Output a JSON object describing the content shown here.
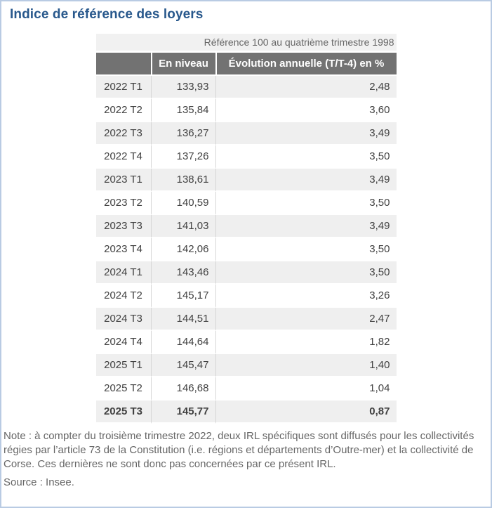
{
  "page": {
    "title": "Indice de référence des loyers",
    "note": "Note : à compter du troisième trimestre 2022, deux IRL spécifiques sont diffusés pour les collectivités régies par l’article 73 de la Constitution (i.e. régions et départements d’Outre-mer) et la collectivité de Corse. Ces dernières ne sont donc pas concernées par ce présent IRL.",
    "source": "Source : Insee."
  },
  "table": {
    "caption": "Référence 100 au quatrième trimestre 1998",
    "columns": [
      "",
      "En niveau",
      "Évolution annuelle (T/T-4) en %"
    ],
    "rows": [
      {
        "quarter": "2022 T1",
        "level": "133,93",
        "evolution": "2,48",
        "bold": false
      },
      {
        "quarter": "2022 T2",
        "level": "135,84",
        "evolution": "3,60",
        "bold": false
      },
      {
        "quarter": "2022 T3",
        "level": "136,27",
        "evolution": "3,49",
        "bold": false
      },
      {
        "quarter": "2022 T4",
        "level": "137,26",
        "evolution": "3,50",
        "bold": false
      },
      {
        "quarter": "2023 T1",
        "level": "138,61",
        "evolution": "3,49",
        "bold": false
      },
      {
        "quarter": "2023 T2",
        "level": "140,59",
        "evolution": "3,50",
        "bold": false
      },
      {
        "quarter": "2023 T3",
        "level": "141,03",
        "evolution": "3,49",
        "bold": false
      },
      {
        "quarter": "2023 T4",
        "level": "142,06",
        "evolution": "3,50",
        "bold": false
      },
      {
        "quarter": "2024 T1",
        "level": "143,46",
        "evolution": "3,50",
        "bold": false
      },
      {
        "quarter": "2024 T2",
        "level": "145,17",
        "evolution": "3,26",
        "bold": false
      },
      {
        "quarter": "2024 T3",
        "level": "144,51",
        "evolution": "2,47",
        "bold": false
      },
      {
        "quarter": "2024 T4",
        "level": "144,64",
        "evolution": "1,82",
        "bold": false
      },
      {
        "quarter": "2025 T1",
        "level": "145,47",
        "evolution": "1,40",
        "bold": false
      },
      {
        "quarter": "2025 T2",
        "level": "146,68",
        "evolution": "1,04",
        "bold": false
      },
      {
        "quarter": "2025 T3",
        "level": "145,77",
        "evolution": "0,87",
        "bold": true
      }
    ]
  },
  "colors": {
    "title_blue": "#28588c",
    "header_gray": "#727272",
    "stripe_gray": "#efefef",
    "page_border_blue": "#b9cbe3",
    "muted_text": "#666666"
  }
}
